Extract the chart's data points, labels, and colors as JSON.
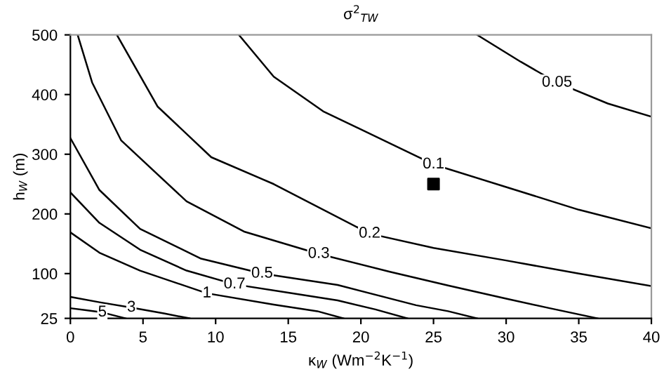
{
  "chart_data": {
    "type": "line",
    "title": "σ$^{2}$$_{TW}$",
    "xlabel": "κ$_{W}$ (Wm$^{−2}$K$^{−1}$)",
    "ylabel": "h$_{W}$ (m)",
    "xlim": [
      0,
      40
    ],
    "xticks": [
      0,
      5,
      10,
      15,
      20,
      25,
      30,
      35,
      40
    ],
    "ylim": [
      25,
      500
    ],
    "yticks": [
      25,
      100,
      200,
      300,
      400,
      500
    ],
    "grid": false,
    "line_style": "solid",
    "series": [
      {
        "name": "0.05",
        "color": "#000000",
        "x": [
          28,
          31,
          33.5,
          37,
          40
        ],
        "values": [
          500,
          455,
          420,
          385,
          363
        ]
      },
      {
        "name": "0.1",
        "color": "#000000",
        "x": [
          11.6,
          14,
          17.4,
          25,
          30,
          35,
          40
        ],
        "values": [
          500,
          430,
          372,
          283,
          245,
          207,
          176
        ]
      },
      {
        "name": "0.2",
        "color": "#000000",
        "x": [
          3.2,
          6,
          9.7,
          14,
          20.6,
          25,
          30,
          35,
          40
        ],
        "values": [
          500,
          380,
          295,
          250,
          167,
          143,
          122,
          100,
          79
        ]
      },
      {
        "name": "0.3",
        "color": "#000000",
        "x": [
          0.5,
          1.5,
          3.5,
          8,
          12,
          17.1,
          22,
          26,
          30,
          33,
          36.3
        ],
        "values": [
          500,
          420,
          323,
          221,
          170,
          133,
          103,
          80,
          58,
          42,
          25
        ]
      },
      {
        "name": "0.5",
        "color": "#000000",
        "x": [
          0,
          2,
          4.8,
          9,
          13.2,
          18.4,
          23.8,
          26,
          28
        ],
        "values": [
          327,
          240,
          175,
          125,
          100,
          81,
          47,
          37,
          25
        ]
      },
      {
        "name": "0.7",
        "color": "#000000",
        "x": [
          0,
          2,
          4.8,
          8,
          11.3,
          15,
          18.4,
          21,
          23.2
        ],
        "values": [
          236,
          185,
          140,
          105,
          82,
          68,
          55,
          40,
          25
        ]
      },
      {
        "name": "1",
        "color": "#000000",
        "x": [
          0,
          2,
          4.8,
          9.4,
          14,
          17,
          18.8
        ],
        "values": [
          169,
          135,
          105,
          67,
          48,
          37,
          25
        ]
      },
      {
        "name": "3",
        "color": "#000000",
        "x": [
          0,
          2,
          4.2,
          6.5,
          8.2
        ],
        "values": [
          61,
          52,
          43,
          33,
          25
        ]
      },
      {
        "name": "5",
        "color": "#000000",
        "x": [
          0,
          1,
          2.2,
          3,
          3.8
        ],
        "values": [
          42,
          39,
          35,
          30,
          25
        ]
      },
      {
        "type": "scatter",
        "marker": "square",
        "color": "#000000",
        "x": [
          25
        ],
        "values": [
          250
        ]
      }
    ]
  }
}
